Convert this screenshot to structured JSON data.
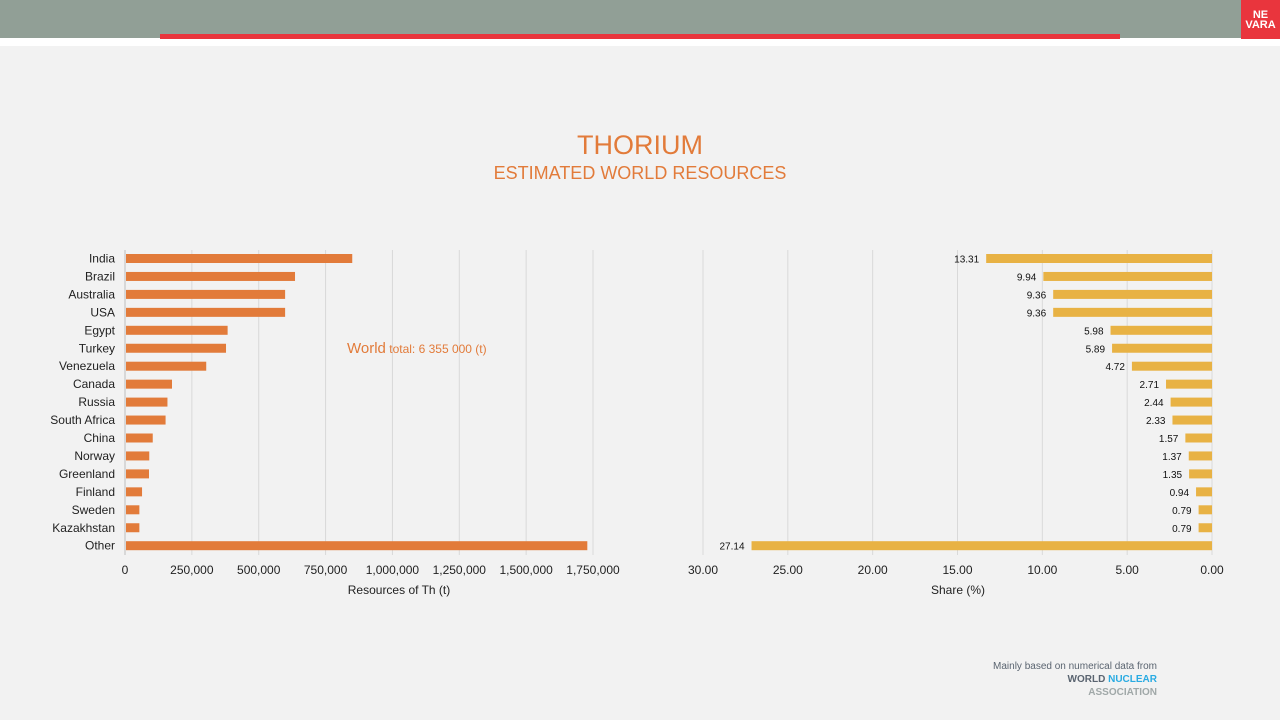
{
  "header": {
    "logo_line1": "NE",
    "logo_line2": "VARA"
  },
  "title": "THORIUM",
  "subtitle": "ESTIMATED WORLD RESOURCES",
  "credit": {
    "line1": "Mainly based on numerical data from",
    "world": "WORLD",
    "nuclear": "NUCLEAR",
    "association": "ASSOCIATION"
  },
  "colors": {
    "left_bar": "#e27b3a",
    "right_bar": "#e8b244",
    "accent": "#e9353d"
  },
  "chart_data": [
    {
      "type": "bar",
      "orientation": "horizontal",
      "xlabel": "Resources of Th (t)",
      "xlim": [
        0,
        1750000
      ],
      "ticks": [
        "0",
        "250,000",
        "500,000",
        "750,000",
        "1,000,000",
        "1,250,000",
        "1,500,000",
        "1,750,000"
      ],
      "annotation": "World total: 6 355 000 (t)",
      "categories": [
        "India",
        "Brazil",
        "Australia",
        "USA",
        "Egypt",
        "Turkey",
        "Venezuela",
        "Canada",
        "Russia",
        "South Africa",
        "China",
        "Norway",
        "Greenland",
        "Finland",
        "Sweden",
        "Kazakhstan",
        "Other"
      ],
      "values": [
        846000,
        632000,
        595000,
        595000,
        380000,
        374000,
        300000,
        172000,
        155000,
        148000,
        100000,
        87000,
        86000,
        60000,
        50000,
        50000,
        1725000
      ]
    },
    {
      "type": "bar",
      "orientation": "horizontal",
      "reversed": true,
      "xlabel": "Share (%)",
      "xlim": [
        0,
        30
      ],
      "ticks": [
        "30.00",
        "25.00",
        "20.00",
        "15.00",
        "10.00",
        "5.00",
        "0.00"
      ],
      "labels": [
        "13.31",
        "9.94",
        "9.36",
        "9.36",
        "5.98",
        "5.89",
        "4.72",
        "2.71",
        "2.44",
        "2.33",
        "1.57",
        "1.37",
        "1.35",
        "0.94",
        "0.79",
        "0.79",
        "27.14"
      ],
      "values": [
        13.31,
        9.94,
        9.36,
        9.36,
        5.98,
        5.89,
        4.72,
        2.71,
        2.44,
        2.33,
        1.57,
        1.37,
        1.35,
        0.94,
        0.79,
        0.79,
        27.14
      ]
    }
  ]
}
